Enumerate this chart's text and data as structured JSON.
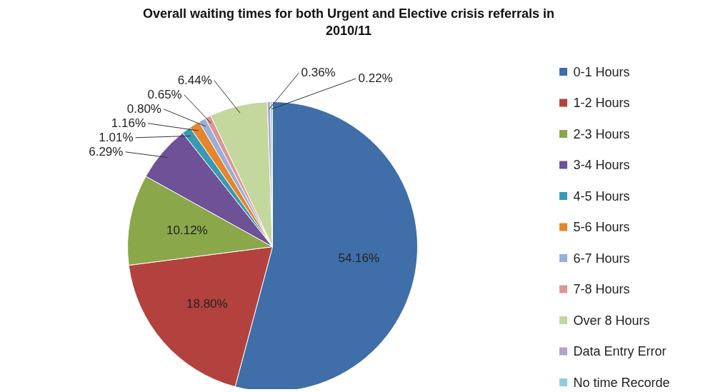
{
  "chart_data": {
    "type": "pie",
    "title": "Overall waiting times for both Urgent and Elective crisis referrals in 2010/11",
    "categories": [
      "0-1 Hours",
      "1-2 Hours",
      "2-3 Hours",
      "3-4 Hours",
      "4-5 Hours",
      "5-6 Hours",
      "6-7 Hours",
      "7-8 Hours",
      "Over 8 Hours",
      "Data Entry Error",
      "No time Recorde"
    ],
    "values": [
      54.16,
      18.8,
      10.12,
      6.29,
      1.01,
      1.16,
      0.8,
      0.65,
      6.44,
      0.36,
      0.22
    ],
    "colors": [
      "#3f6ea8",
      "#b3413d",
      "#8aa74a",
      "#6e5196",
      "#3899b3",
      "#e5852c",
      "#98afd9",
      "#da9795",
      "#c4d79c",
      "#b2a3c8",
      "#92cddc"
    ],
    "value_labels": [
      "54.16%",
      "18.80%",
      "10.12%",
      "6.29%",
      "1.01%",
      "1.16%",
      "0.80%",
      "0.65%",
      "6.44%",
      "0.36%",
      "0.22%"
    ],
    "legend": "right"
  }
}
